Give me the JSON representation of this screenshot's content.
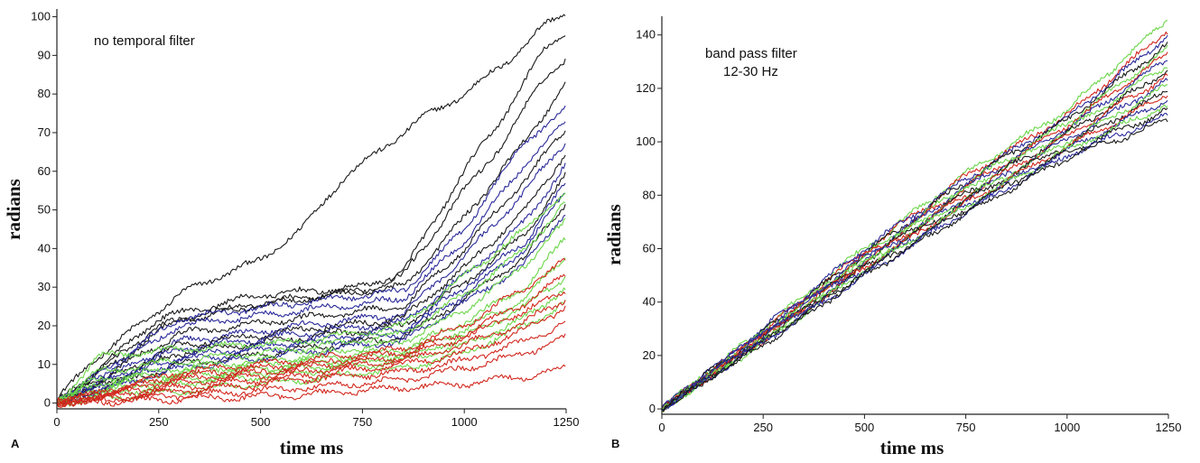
{
  "chart_data": [
    {
      "type": "line",
      "panel_label": "A",
      "annotation": [
        "no temporal filter"
      ],
      "xlabel": "time ms",
      "ylabel": "radians",
      "xlim": [
        0,
        1250
      ],
      "ylim": [
        -1.5,
        102
      ],
      "xticks": [
        0,
        250,
        500,
        750,
        1000,
        1250
      ],
      "yticks": [
        0,
        10,
        20,
        30,
        40,
        50,
        60,
        70,
        80,
        90,
        100
      ],
      "grid": false,
      "legend": "none",
      "series_colors": {
        "black": "#1a1a1a",
        "blue": "#2a2a9a",
        "green": "#6cd64a",
        "red": "#d2281e"
      },
      "series": [
        {
          "color": "black",
          "x": [
            0,
            100,
            200,
            250,
            300,
            400,
            500,
            600,
            700,
            800,
            900,
            1000,
            1100,
            1200,
            1250
          ],
          "y": [
            1,
            12,
            20,
            24,
            28,
            33,
            37,
            45,
            58,
            66,
            74,
            80,
            88,
            98,
            101
          ]
        },
        {
          "color": "black",
          "x": [
            0,
            250,
            500,
            750,
            850,
            1000,
            1100,
            1200,
            1250
          ],
          "y": [
            0,
            22,
            28,
            30,
            34,
            60,
            75,
            92,
            96
          ]
        },
        {
          "color": "black",
          "x": [
            0,
            250,
            500,
            750,
            850,
            1000,
            1100,
            1200,
            1250
          ],
          "y": [
            0,
            20,
            26,
            29,
            33,
            55,
            68,
            85,
            89
          ]
        },
        {
          "color": "black",
          "x": [
            0,
            300,
            600,
            850,
            1000,
            1150,
            1250
          ],
          "y": [
            0,
            22,
            27,
            30,
            48,
            68,
            83
          ]
        },
        {
          "color": "blue",
          "x": [
            0,
            300,
            600,
            850,
            1000,
            1150,
            1250
          ],
          "y": [
            0,
            22,
            26,
            29,
            45,
            68,
            76
          ]
        },
        {
          "color": "blue",
          "x": [
            0,
            300,
            600,
            850,
            1000,
            1150,
            1250
          ],
          "y": [
            0,
            20,
            24,
            27,
            42,
            62,
            73
          ]
        },
        {
          "color": "black",
          "x": [
            0,
            300,
            600,
            850,
            1000,
            1150,
            1250
          ],
          "y": [
            0,
            18,
            22,
            25,
            40,
            58,
            71
          ]
        },
        {
          "color": "blue",
          "x": [
            0,
            300,
            600,
            850,
            1000,
            1150,
            1250
          ],
          "y": [
            0,
            16,
            20,
            23,
            38,
            55,
            68
          ]
        },
        {
          "color": "black",
          "x": [
            0,
            300,
            600,
            850,
            1000,
            1150,
            1250
          ],
          "y": [
            0,
            15,
            19,
            22,
            35,
            50,
            65
          ]
        },
        {
          "color": "blue",
          "x": [
            0,
            300,
            600,
            850,
            1000,
            1150,
            1250
          ],
          "y": [
            0,
            14,
            18,
            21,
            33,
            47,
            62
          ]
        },
        {
          "color": "black",
          "x": [
            0,
            300,
            600,
            850,
            1000,
            1150,
            1250
          ],
          "y": [
            0,
            13,
            17,
            20,
            31,
            44,
            59
          ]
        },
        {
          "color": "blue",
          "x": [
            0,
            300,
            600,
            850,
            1000,
            1150,
            1250
          ],
          "y": [
            0,
            12,
            16,
            19,
            30,
            42,
            57
          ]
        },
        {
          "color": "blue",
          "x": [
            0,
            300,
            600,
            850,
            1000,
            1150,
            1250
          ],
          "y": [
            0,
            11,
            15,
            18,
            28,
            40,
            55
          ]
        },
        {
          "color": "black",
          "x": [
            0,
            300,
            600,
            850,
            1000,
            1150,
            1250
          ],
          "y": [
            0,
            10,
            14,
            17,
            27,
            38,
            52
          ]
        },
        {
          "color": "blue",
          "x": [
            0,
            300,
            600,
            850,
            1000,
            1150,
            1250
          ],
          "y": [
            0,
            9,
            13,
            16,
            26,
            36,
            50
          ]
        },
        {
          "color": "green",
          "x": [
            0,
            100,
            300,
            600,
            850,
            1000,
            1150,
            1250
          ],
          "y": [
            0,
            12,
            14,
            16,
            20,
            33,
            45,
            55
          ]
        },
        {
          "color": "green",
          "x": [
            0,
            100,
            300,
            600,
            850,
            1000,
            1150,
            1250
          ],
          "y": [
            0,
            8,
            11,
            14,
            18,
            28,
            40,
            52
          ]
        },
        {
          "color": "green",
          "x": [
            0,
            100,
            300,
            600,
            850,
            1000,
            1150,
            1250
          ],
          "y": [
            0,
            6,
            9,
            12,
            16,
            24,
            36,
            47
          ]
        },
        {
          "color": "green",
          "x": [
            0,
            100,
            300,
            600,
            850,
            1000,
            1150,
            1250
          ],
          "y": [
            0,
            5,
            8,
            11,
            14,
            21,
            30,
            43
          ]
        },
        {
          "color": "green",
          "x": [
            0,
            100,
            300,
            600,
            850,
            1000,
            1150,
            1250
          ],
          "y": [
            0,
            4,
            7,
            10,
            13,
            19,
            27,
            38
          ]
        },
        {
          "color": "green",
          "x": [
            0,
            100,
            300,
            600,
            850,
            1000,
            1150,
            1250
          ],
          "y": [
            0,
            3,
            6,
            9,
            12,
            17,
            25,
            33
          ]
        },
        {
          "color": "green",
          "x": [
            0,
            100,
            300,
            600,
            850,
            1000,
            1150,
            1250
          ],
          "y": [
            0,
            2,
            5,
            8,
            11,
            15,
            22,
            30
          ]
        },
        {
          "color": "green",
          "x": [
            0,
            100,
            300,
            600,
            850,
            1000,
            1150,
            1250
          ],
          "y": [
            0,
            1,
            3,
            6,
            9,
            13,
            20,
            26
          ]
        },
        {
          "color": "red",
          "x": [
            0,
            300,
            600,
            850,
            1000,
            1150,
            1250
          ],
          "y": [
            0,
            8,
            11,
            14,
            20,
            30,
            37
          ]
        },
        {
          "color": "red",
          "x": [
            0,
            300,
            600,
            850,
            1000,
            1150,
            1250
          ],
          "y": [
            0,
            7,
            10,
            13,
            18,
            26,
            33
          ]
        },
        {
          "color": "red",
          "x": [
            0,
            300,
            600,
            850,
            1000,
            1150,
            1250
          ],
          "y": [
            0,
            6,
            9,
            12,
            17,
            24,
            29
          ]
        },
        {
          "color": "red",
          "x": [
            0,
            300,
            600,
            850,
            1000,
            1150,
            1250
          ],
          "y": [
            0,
            5,
            8,
            11,
            15,
            21,
            27
          ]
        },
        {
          "color": "red",
          "x": [
            0,
            300,
            600,
            850,
            1000,
            1150,
            1250
          ],
          "y": [
            0,
            4,
            7,
            10,
            13,
            19,
            25
          ]
        },
        {
          "color": "red",
          "x": [
            0,
            300,
            600,
            850,
            1000,
            1150,
            1250
          ],
          "y": [
            0,
            3,
            6,
            8,
            11,
            16,
            21
          ]
        },
        {
          "color": "red",
          "x": [
            0,
            300,
            600,
            850,
            1000,
            1150,
            1250
          ],
          "y": [
            0,
            2,
            4,
            6,
            9,
            13,
            17
          ]
        },
        {
          "color": "red",
          "x": [
            0,
            300,
            600,
            850,
            1000,
            1150,
            1250
          ],
          "y": [
            0,
            1,
            2,
            4,
            5,
            7,
            9
          ]
        }
      ]
    },
    {
      "type": "line",
      "panel_label": "B",
      "annotation": [
        "band pass filter",
        "12-30 Hz"
      ],
      "xlabel": "time ms",
      "ylabel": "radians",
      "xlim": [
        0,
        1250
      ],
      "ylim": [
        -2,
        147
      ],
      "xticks": [
        0,
        250,
        500,
        750,
        1000,
        1250
      ],
      "yticks": [
        0,
        20,
        40,
        60,
        80,
        100,
        120,
        140
      ],
      "grid": false,
      "legend": "none",
      "series_colors": {
        "black": "#1a1a1a",
        "blue": "#2a2a9a",
        "green": "#6cd64a",
        "red": "#d2281e"
      },
      "series": [
        {
          "color": "green",
          "x": [
            0,
            250,
            500,
            750,
            1000,
            1250
          ],
          "y": [
            0,
            30,
            60,
            88,
            112,
            146
          ]
        },
        {
          "color": "red",
          "x": [
            0,
            250,
            500,
            750,
            1000,
            1250
          ],
          "y": [
            0,
            29,
            59,
            87,
            110,
            142
          ]
        },
        {
          "color": "blue",
          "x": [
            0,
            250,
            500,
            750,
            1000,
            1250
          ],
          "y": [
            0,
            30,
            60,
            86,
            109,
            140
          ]
        },
        {
          "color": "black",
          "x": [
            0,
            250,
            500,
            750,
            1000,
            1250
          ],
          "y": [
            0,
            29,
            58,
            85,
            108,
            137
          ]
        },
        {
          "color": "green",
          "x": [
            0,
            250,
            500,
            750,
            1000,
            1250
          ],
          "y": [
            0,
            28,
            57,
            84,
            107,
            135
          ]
        },
        {
          "color": "red",
          "x": [
            0,
            250,
            500,
            750,
            1000,
            1250
          ],
          "y": [
            0,
            28,
            57,
            83,
            106,
            133
          ]
        },
        {
          "color": "blue",
          "x": [
            0,
            250,
            500,
            750,
            1000,
            1250
          ],
          "y": [
            0,
            29,
            57,
            83,
            105,
            131
          ]
        },
        {
          "color": "green",
          "x": [
            0,
            250,
            500,
            750,
            1000,
            1250
          ],
          "y": [
            0,
            27,
            56,
            82,
            104,
            129
          ]
        },
        {
          "color": "black",
          "x": [
            0,
            250,
            500,
            750,
            1000,
            1250
          ],
          "y": [
            0,
            27,
            55,
            81,
            103,
            127
          ]
        },
        {
          "color": "red",
          "x": [
            0,
            250,
            500,
            750,
            1000,
            1250
          ],
          "y": [
            0,
            27,
            55,
            80,
            102,
            125
          ]
        },
        {
          "color": "blue",
          "x": [
            0,
            250,
            500,
            750,
            1000,
            1250
          ],
          "y": [
            0,
            28,
            55,
            79,
            101,
            123
          ]
        },
        {
          "color": "green",
          "x": [
            0,
            250,
            500,
            750,
            1000,
            1250
          ],
          "y": [
            0,
            26,
            54,
            79,
            100,
            121
          ]
        },
        {
          "color": "black",
          "x": [
            0,
            250,
            500,
            750,
            1000,
            1250
          ],
          "y": [
            0,
            26,
            53,
            78,
            99,
            119
          ]
        },
        {
          "color": "red",
          "x": [
            0,
            250,
            500,
            750,
            1000,
            1250
          ],
          "y": [
            0,
            26,
            53,
            77,
            98,
            118
          ]
        },
        {
          "color": "blue",
          "x": [
            0,
            250,
            500,
            750,
            1000,
            1250
          ],
          "y": [
            0,
            27,
            52,
            76,
            97,
            116
          ]
        },
        {
          "color": "green",
          "x": [
            0,
            250,
            500,
            750,
            1000,
            1250
          ],
          "y": [
            0,
            25,
            52,
            76,
            97,
            114
          ]
        },
        {
          "color": "black",
          "x": [
            0,
            250,
            500,
            750,
            1000,
            1250
          ],
          "y": [
            0,
            25,
            51,
            75,
            96,
            112
          ]
        },
        {
          "color": "blue",
          "x": [
            0,
            250,
            500,
            750,
            1000,
            1250
          ],
          "y": [
            0,
            25,
            50,
            74,
            95,
            110
          ]
        },
        {
          "color": "black",
          "x": [
            0,
            250,
            500,
            750,
            1000,
            1250
          ],
          "y": [
            0,
            24,
            50,
            73,
            94,
            108
          ]
        }
      ]
    }
  ]
}
